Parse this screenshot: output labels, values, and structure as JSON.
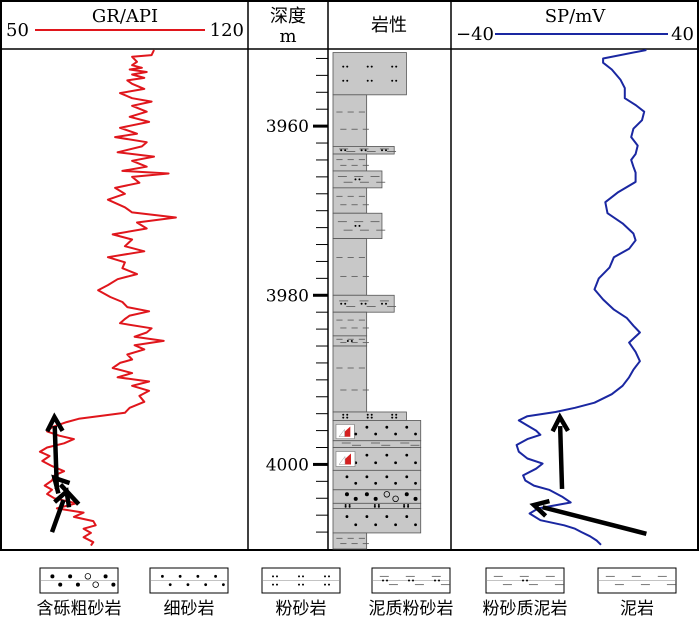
{
  "chart_data": {
    "type": "line",
    "orientation": "vertical-well-log",
    "depth_track": {
      "header": [
        "深度",
        "m"
      ],
      "unit": "m",
      "ticks": [
        3960,
        3980,
        4000
      ],
      "range": [
        3951,
        4010
      ]
    },
    "gr_track": {
      "label": "GR/API",
      "scale_left": "50",
      "scale_right": "120",
      "min": 50,
      "max": 120,
      "color": "#e0161c",
      "values": [
        [
          3951.0,
          99
        ],
        [
          3951.6,
          98
        ],
        [
          3951.8,
          90
        ],
        [
          3952.4,
          92
        ],
        [
          3952.8,
          90
        ],
        [
          3953.1,
          94
        ],
        [
          3953.3,
          89
        ],
        [
          3953.6,
          96
        ],
        [
          3953.9,
          90
        ],
        [
          3954.3,
          95
        ],
        [
          3954.6,
          88
        ],
        [
          3955.0,
          90
        ],
        [
          3955.6,
          95
        ],
        [
          3956.1,
          85
        ],
        [
          3956.7,
          90
        ],
        [
          3957.1,
          98
        ],
        [
          3957.6,
          90
        ],
        [
          3958.3,
          96
        ],
        [
          3958.9,
          89
        ],
        [
          3959.5,
          97
        ],
        [
          3960.2,
          85
        ],
        [
          3960.9,
          92
        ],
        [
          3961.3,
          83
        ],
        [
          3961.9,
          96
        ],
        [
          3962.4,
          94
        ],
        [
          3963.1,
          84
        ],
        [
          3963.6,
          99
        ],
        [
          3964.1,
          90
        ],
        [
          3964.8,
          96
        ],
        [
          3965.3,
          86
        ],
        [
          3965.6,
          105
        ],
        [
          3966.0,
          90
        ],
        [
          3966.7,
          93
        ],
        [
          3967.3,
          83
        ],
        [
          3968.0,
          87
        ],
        [
          3968.7,
          80
        ],
        [
          3969.6,
          87
        ],
        [
          3970.2,
          90
        ],
        [
          3970.8,
          108
        ],
        [
          3971.4,
          92
        ],
        [
          3972.1,
          96
        ],
        [
          3972.8,
          82
        ],
        [
          3973.4,
          90
        ],
        [
          3974.2,
          87
        ],
        [
          3974.8,
          95
        ],
        [
          3975.5,
          80
        ],
        [
          3976.1,
          87
        ],
        [
          3976.8,
          86
        ],
        [
          3977.5,
          92
        ],
        [
          3978.1,
          84
        ],
        [
          3978.8,
          80
        ],
        [
          3979.4,
          76
        ],
        [
          3980.2,
          81
        ],
        [
          3980.8,
          86
        ],
        [
          3981.4,
          88
        ],
        [
          3981.9,
          97
        ],
        [
          3982.4,
          89
        ],
        [
          3982.8,
          87
        ],
        [
          3983.3,
          85
        ],
        [
          3983.9,
          98
        ],
        [
          3984.4,
          96
        ],
        [
          3984.9,
          91
        ],
        [
          3985.4,
          103
        ],
        [
          3985.9,
          91
        ],
        [
          3986.4,
          95
        ],
        [
          3987.0,
          88
        ],
        [
          3987.6,
          90
        ],
        [
          3988.0,
          85
        ],
        [
          3988.6,
          82
        ],
        [
          3989.2,
          90
        ],
        [
          3989.7,
          84
        ],
        [
          3990.2,
          97
        ],
        [
          3990.7,
          90
        ],
        [
          3991.3,
          97
        ],
        [
          3991.9,
          93
        ],
        [
          3992.6,
          95
        ],
        [
          3993.3,
          89
        ],
        [
          3993.9,
          87
        ],
        [
          3994.3,
          76
        ],
        [
          3994.6,
          68
        ],
        [
          3995.0,
          63
        ],
        [
          3995.6,
          57
        ],
        [
          3996.1,
          55
        ],
        [
          3996.6,
          60
        ],
        [
          3997.0,
          66
        ],
        [
          3997.5,
          62
        ],
        [
          3998.0,
          55
        ],
        [
          3998.5,
          52
        ],
        [
          3999.0,
          56
        ],
        [
          3999.6,
          53
        ],
        [
          4000.2,
          57
        ],
        [
          4000.8,
          62
        ],
        [
          4001.3,
          58
        ],
        [
          4001.9,
          57
        ],
        [
          4002.5,
          54
        ],
        [
          4003.0,
          57
        ],
        [
          4003.5,
          55
        ],
        [
          4004.0,
          58
        ],
        [
          4004.6,
          67
        ],
        [
          4005.2,
          59
        ],
        [
          4005.7,
          70
        ],
        [
          4006.2,
          66
        ],
        [
          4006.7,
          74
        ],
        [
          4007.2,
          75
        ],
        [
          4007.6,
          70
        ],
        [
          4008.1,
          73
        ],
        [
          4008.6,
          70
        ],
        [
          4009.2,
          74
        ],
        [
          4009.6,
          73
        ]
      ]
    },
    "sp_track": {
      "label": "SP/mV",
      "scale_left": "−40",
      "scale_right": "40",
      "min": -40,
      "max": 40,
      "color": "#1a27a1",
      "values": [
        [
          3951.0,
          30
        ],
        [
          3952.0,
          10
        ],
        [
          3952.5,
          10
        ],
        [
          3953.3,
          14
        ],
        [
          3954.5,
          18
        ],
        [
          3955.5,
          20
        ],
        [
          3956.7,
          20
        ],
        [
          3957.5,
          25
        ],
        [
          3958.3,
          29
        ],
        [
          3959.3,
          28
        ],
        [
          3960.3,
          24
        ],
        [
          3961.3,
          23
        ],
        [
          3962.3,
          26
        ],
        [
          3963.3,
          25
        ],
        [
          3964.0,
          23
        ],
        [
          3964.8,
          24
        ],
        [
          3965.5,
          25
        ],
        [
          3966.6,
          25
        ],
        [
          3967.8,
          17
        ],
        [
          3969.0,
          11
        ],
        [
          3970.3,
          12
        ],
        [
          3971.5,
          19
        ],
        [
          3972.7,
          24
        ],
        [
          3973.5,
          25
        ],
        [
          3974.5,
          22
        ],
        [
          3975.5,
          15
        ],
        [
          3976.7,
          13
        ],
        [
          3978.0,
          8
        ],
        [
          3979.3,
          6
        ],
        [
          3980.5,
          10
        ],
        [
          3981.7,
          15
        ],
        [
          3982.7,
          21
        ],
        [
          3983.6,
          24
        ],
        [
          3984.4,
          27
        ],
        [
          3985.6,
          22
        ],
        [
          3986.7,
          25
        ],
        [
          3987.8,
          27
        ],
        [
          3988.8,
          24
        ],
        [
          3989.7,
          22
        ],
        [
          3990.7,
          19
        ],
        [
          3991.7,
          14
        ],
        [
          3992.7,
          6
        ],
        [
          3993.3,
          -3
        ],
        [
          3993.8,
          -12
        ],
        [
          3994.3,
          -25
        ],
        [
          3994.8,
          -29
        ],
        [
          3995.4,
          -25
        ],
        [
          3996.0,
          -21
        ],
        [
          3996.5,
          -19
        ],
        [
          3997.0,
          -25
        ],
        [
          3997.7,
          -30
        ],
        [
          3998.5,
          -29
        ],
        [
          3999.3,
          -25
        ],
        [
          3999.9,
          -18
        ],
        [
          4000.5,
          -21
        ],
        [
          4001.3,
          -27
        ],
        [
          4001.9,
          -26
        ],
        [
          4002.5,
          -22
        ],
        [
          4003.0,
          -15
        ],
        [
          4003.8,
          -9
        ],
        [
          4004.5,
          -5
        ],
        [
          4005.2,
          -20
        ],
        [
          4005.8,
          -24
        ],
        [
          4006.6,
          -19
        ],
        [
          4007.2,
          -8
        ],
        [
          4007.6,
          -3
        ],
        [
          4008.0,
          0
        ],
        [
          4008.5,
          4
        ],
        [
          4009.0,
          7
        ],
        [
          4009.5,
          9
        ]
      ]
    },
    "lithology_track": {
      "header": "岩性",
      "column_x_range": [
        0,
        1
      ],
      "layers": [
        {
          "top": 3951.3,
          "bottom": 3956.3,
          "type": "粉砂岩",
          "width": 0.72
        },
        {
          "top": 3956.3,
          "bottom": 3962.4,
          "type": "泥岩",
          "width": 0.33
        },
        {
          "top": 3962.4,
          "bottom": 3963.3,
          "type": "泥质粉砂岩",
          "width": 0.6
        },
        {
          "top": 3963.3,
          "bottom": 3965.3,
          "type": "泥岩",
          "width": 0.33
        },
        {
          "top": 3965.3,
          "bottom": 3967.3,
          "type": "粉砂质泥岩",
          "width": 0.48
        },
        {
          "top": 3967.3,
          "bottom": 3970.3,
          "type": "泥岩",
          "width": 0.33
        },
        {
          "top": 3970.3,
          "bottom": 3973.3,
          "type": "粉砂质泥岩",
          "width": 0.48
        },
        {
          "top": 3973.3,
          "bottom": 3980.0,
          "type": "泥岩",
          "width": 0.33
        },
        {
          "top": 3980.0,
          "bottom": 3982.0,
          "type": "泥质粉砂岩",
          "width": 0.6
        },
        {
          "top": 3982.0,
          "bottom": 3984.8,
          "type": "泥岩",
          "width": 0.33
        },
        {
          "top": 3984.8,
          "bottom": 3986.0,
          "type": "粉砂质泥岩",
          "width": 0.33
        },
        {
          "top": 3986.0,
          "bottom": 3993.8,
          "type": "泥岩",
          "width": 0.33
        },
        {
          "top": 3993.8,
          "bottom": 3994.8,
          "type": "粉砂岩",
          "width": 0.72
        },
        {
          "top": 3994.8,
          "bottom": 3997.2,
          "type": "细砂岩",
          "width": 0.86,
          "marker": true
        },
        {
          "top": 3997.2,
          "bottom": 3998.0,
          "type": "泥岩",
          "width": 0.86
        },
        {
          "top": 3998.0,
          "bottom": 4000.7,
          "type": "细砂岩",
          "width": 0.86,
          "marker": true
        },
        {
          "top": 4000.7,
          "bottom": 4003.0,
          "type": "细砂岩",
          "width": 0.86
        },
        {
          "top": 4003.0,
          "bottom": 4004.6,
          "type": "含砾粗砂岩",
          "width": 0.86
        },
        {
          "top": 4004.6,
          "bottom": 4005.2,
          "type": "粉砂岩",
          "width": 0.86
        },
        {
          "top": 4005.2,
          "bottom": 4008.1,
          "type": "细砂岩",
          "width": 0.86
        },
        {
          "top": 4008.1,
          "bottom": 4010.0,
          "type": "泥岩",
          "width": 0.33
        }
      ]
    },
    "trend_arrows": [
      {
        "track": "gr",
        "from": [
          57,
          4008.0
        ],
        "to": [
          63,
          4003.2
        ]
      },
      {
        "track": "gr",
        "from": [
          68,
          4004.7
        ],
        "to": [
          58,
          4001.6
        ]
      },
      {
        "track": "gr",
        "from": [
          59,
          4002.9
        ],
        "to": [
          58,
          3994.4
        ]
      },
      {
        "track": "sp",
        "from": [
          30,
          4008.2
        ],
        "to": [
          -22,
          4004.8
        ]
      },
      {
        "track": "sp",
        "from": [
          -9,
          4002.9
        ],
        "to": [
          -10,
          3994.4
        ]
      }
    ],
    "legend": [
      {
        "type": "含砾粗砂岩",
        "label": "含砾粗砂岩"
      },
      {
        "type": "细砂岩",
        "label": "细砂岩"
      },
      {
        "type": "粉砂岩",
        "label": "粉砂岩"
      },
      {
        "type": "泥质粉砂岩",
        "label": "泥质粉砂岩"
      },
      {
        "type": "粉砂质泥岩",
        "label": "粉砂质泥岩"
      },
      {
        "type": "泥岩",
        "label": "泥岩"
      }
    ]
  }
}
